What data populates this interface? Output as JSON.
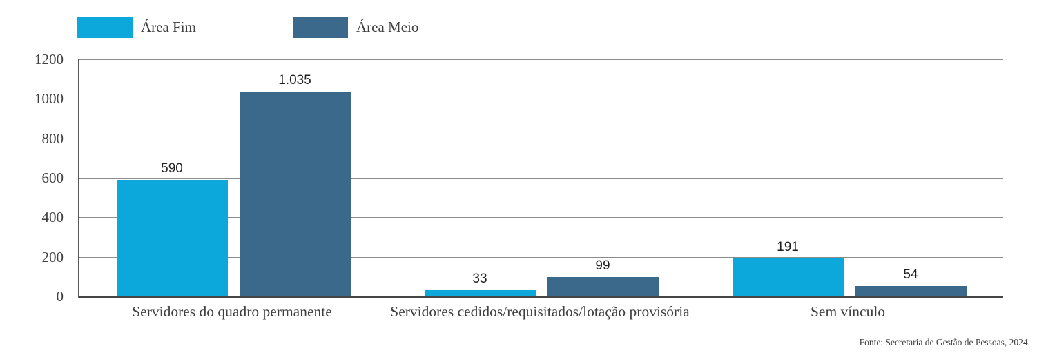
{
  "chart_data": {
    "type": "bar",
    "title": "",
    "categories": [
      "Servidores do quadro permanente",
      "Servidores cedidos/requisitados/lotação provisória",
      "Sem vínculo"
    ],
    "series": [
      {
        "name": "Área Fim",
        "color": "#0ca8dc",
        "values": [
          590,
          33,
          191
        ],
        "value_labels": [
          "590",
          "33",
          "191"
        ]
      },
      {
        "name": "Área Meio",
        "color": "#3a698c",
        "values": [
          1035,
          99,
          54
        ],
        "value_labels": [
          "1.035",
          "99",
          "54"
        ]
      }
    ],
    "ylim": [
      0,
      1200
    ],
    "yticks": [
      0,
      200,
      400,
      600,
      800,
      1000,
      1200
    ],
    "ytick_labels": [
      "0",
      "200",
      "400",
      "600",
      "800",
      "1000",
      "1200"
    ],
    "grid": true,
    "legend_position": "top-left",
    "source_note": "Fonte: Secretaria de Gestão de Pessoas, 2024."
  },
  "colors": {
    "gridline": "#8c8c8c",
    "axis": "#595959",
    "tick_text": "#3f3f3f",
    "value_text": "#1f1f1f",
    "background": "#ffffff"
  }
}
